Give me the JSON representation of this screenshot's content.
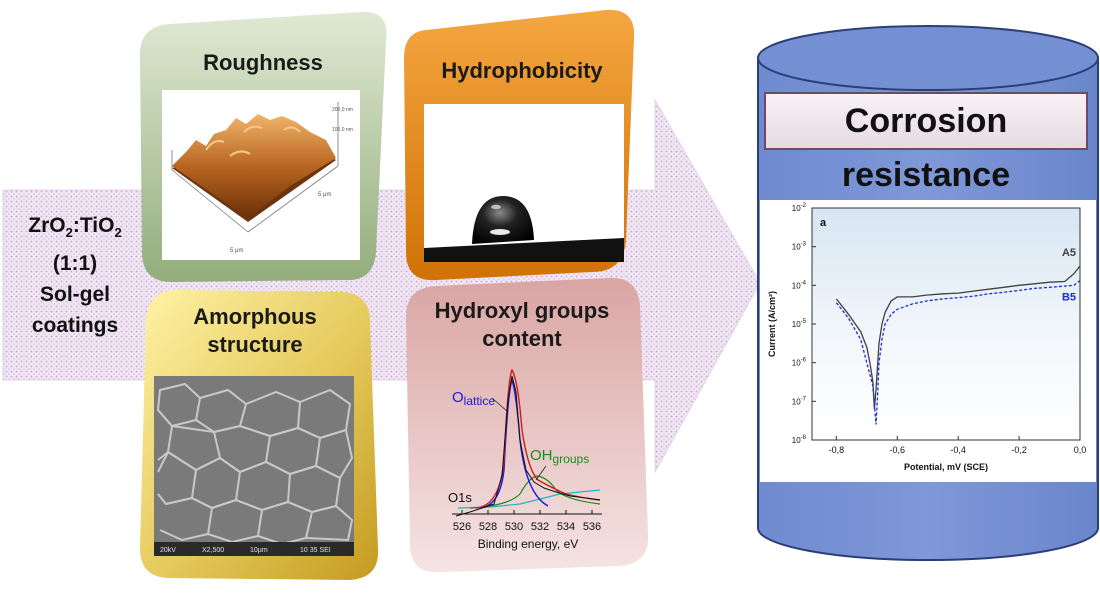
{
  "composition": {
    "line1_parts": [
      "ZrO",
      "2",
      ":TiO",
      "2"
    ],
    "line2": "(1:1)",
    "line3": "Sol-gel",
    "line4": "coatings"
  },
  "cards": {
    "roughness": {
      "title": "Roughness",
      "afm_labels": [
        "5 μm",
        "5 μm",
        "200.0 nm",
        "100.0 nm"
      ]
    },
    "hydrophobicity": {
      "title": "Hydrophobicity"
    },
    "amorphous": {
      "title_line1": "Amorphous",
      "title_line2": "structure",
      "sem_caption": [
        "20kV",
        "X2,500",
        "10μm",
        "10 35 SEI"
      ]
    },
    "hydroxyl": {
      "title_line1": "Hydroxyl groups",
      "title_line2": "content",
      "label_lattice": "O",
      "label_lattice_sub": "lattice",
      "label_oh": "OH",
      "label_oh_sub": "groups",
      "label_o1s": "O1s",
      "xlabel": "Binding energy, eV",
      "xticks": [
        "526",
        "528",
        "530",
        "532",
        "534",
        "536"
      ]
    }
  },
  "corrosion": {
    "title": "Corrosion resistance",
    "chart_data": {
      "type": "line",
      "panel_label": "a",
      "xlabel": "Potential, mV (SCE)",
      "ylabel": "Current (A/cm²)",
      "x_ticks": [
        "-0,8",
        "-0,6",
        "-0,4",
        "-0,2",
        "0,0"
      ],
      "y_ticks_exp": [
        "-8",
        "-7",
        "-6",
        "-5",
        "-4",
        "-3",
        "-2"
      ],
      "xlim": [
        -0.88,
        0.0
      ],
      "ylim_log10": [
        -8,
        -2
      ],
      "series": [
        {
          "name": "A5",
          "color": "#404040",
          "dashed": false,
          "x": [
            -0.8,
            -0.76,
            -0.72,
            -0.7,
            -0.69,
            -0.68,
            -0.675,
            -0.67,
            -0.665,
            -0.66,
            -0.65,
            -0.64,
            -0.62,
            -0.6,
            -0.55,
            -0.5,
            -0.45,
            -0.4,
            -0.35,
            -0.3,
            -0.25,
            -0.2,
            -0.15,
            -0.1,
            -0.05,
            -0.02,
            0.0
          ],
          "y": [
            -4.35,
            -4.75,
            -5.2,
            -5.6,
            -6.0,
            -6.5,
            -7.2,
            -6.7,
            -6.1,
            -5.5,
            -5.0,
            -4.7,
            -4.4,
            -4.3,
            -4.3,
            -4.25,
            -4.22,
            -4.2,
            -4.15,
            -4.1,
            -4.05,
            -4.0,
            -3.96,
            -3.92,
            -3.9,
            -3.7,
            -3.5
          ]
        },
        {
          "name": "B5",
          "color": "#1a2ecc",
          "dashed": true,
          "x": [
            -0.8,
            -0.76,
            -0.72,
            -0.7,
            -0.68,
            -0.67,
            -0.665,
            -0.66,
            -0.65,
            -0.64,
            -0.62,
            -0.6,
            -0.55,
            -0.5,
            -0.45,
            -0.4,
            -0.35,
            -0.3,
            -0.25,
            -0.2,
            -0.15,
            -0.1,
            -0.05,
            -0.02,
            0.0
          ],
          "y": [
            -4.45,
            -4.85,
            -5.4,
            -6.0,
            -6.6,
            -7.6,
            -6.9,
            -6.0,
            -5.4,
            -5.0,
            -4.75,
            -4.62,
            -4.48,
            -4.4,
            -4.35,
            -4.32,
            -4.28,
            -4.22,
            -4.18,
            -4.13,
            -4.08,
            -4.05,
            -4.02,
            -4.0,
            -3.88
          ]
        }
      ]
    }
  }
}
